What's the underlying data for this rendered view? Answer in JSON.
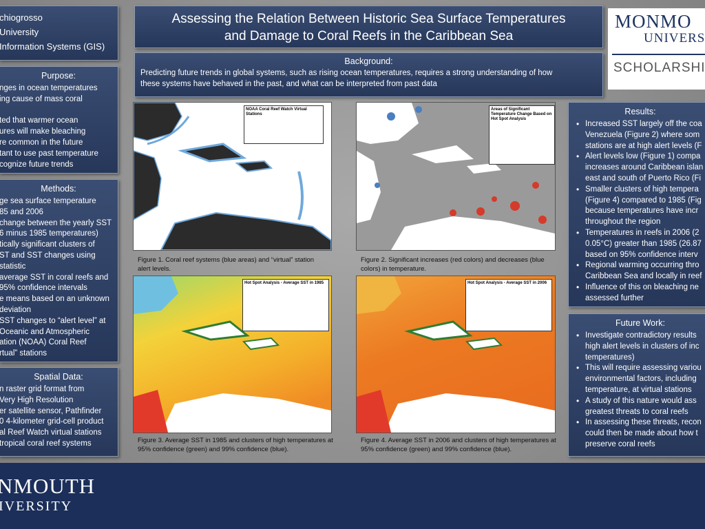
{
  "header": {
    "lines": [
      "chiogrosso",
      "University",
      "Information Systems (GIS)"
    ]
  },
  "purpose": {
    "title": "Purpose:",
    "lines": [
      "nges in ocean temperatures",
      "ing cause of mass coral",
      "",
      "ted that warmer ocean",
      "ures will make bleaching",
      "re common in the future",
      "tant to use past temperature",
      "cognize future trends"
    ]
  },
  "methods": {
    "title": "Methods:",
    "lines": [
      "ge sea surface temperature",
      "85 and 2006",
      "change between the yearly SST",
      "6 minus 1985 temperatures)",
      "tically significant clusters of",
      "ST and SST changes using",
      "statistic",
      "average SST in coral reefs and",
      "95% confidence intervals",
      "e means based on an unknown",
      "deviation",
      "SST changes to “alert level” at",
      "Oceanic and Atmospheric",
      "ation (NOAA) Coral Reef",
      "rtual” stations"
    ]
  },
  "spatial_data": {
    "title": "Spatial Data:",
    "lines": [
      "n raster grid format from",
      "Very High Resolution",
      "er satellite sensor, Pathfinder",
      "0 4-kilometer grid-cell product",
      "al Reef Watch virtual stations",
      "tropical coral reef systems"
    ]
  },
  "title": {
    "lines": [
      "Assessing the Relation Between Historic Sea Surface Temperatures",
      "and Damage to Coral Reefs in the Caribbean Sea"
    ]
  },
  "background": {
    "title": "Background:",
    "lines": [
      "Predicting future trends in global systems, such as rising ocean temperatures, requires a strong understanding of how",
      "these systems have behaved in the past, and what can be interpreted from past data"
    ]
  },
  "logo": {
    "name": [
      "MONMO",
      "UNIVERS"
    ],
    "tagline": "SCHOLARSHI"
  },
  "figures": [
    {
      "legend_title": "NOAA Coral Reef Watch Virtual Stations",
      "caption": [
        "Figure 1. Coral reef systems (blue areas) and “virtual” station",
        "alert levels."
      ]
    },
    {
      "legend_title": "Areas of Significant Temperature Change Based on Hot Spot Analysis",
      "caption": [
        "Figure 2. Significant increases (red colors) and decreases (blue",
        "colors) in temperature."
      ]
    },
    {
      "legend_title": "Hot Spot Analysis - Average SST in 1985",
      "caption": [
        "Figure 3. Average SST in 1985 and clusters of high temperatures at",
        "95% confidence (green) and 99% confidence (blue)."
      ]
    },
    {
      "legend_title": "Hot Spot Analysis - Average SST in 2006",
      "caption": [
        "Figure 4. Average SST in 2006 and clusters of high temperatures at",
        "95% confidence (green) and 99% confidence (blue)."
      ]
    }
  ],
  "results": {
    "title": "Results:",
    "items": [
      [
        "Increased SST largely off the coa",
        "Venezuela (Figure 2) where som",
        "stations are at high alert levels (F"
      ],
      [
        "Alert levels low (Figure 1) compa",
        "increases around Caribbean islan",
        "east and south of Puerto Rico (Fi"
      ],
      [
        "Smaller clusters of high tempera",
        "(Figure 4) compared to 1985 (Fig",
        "because temperatures have incr",
        "throughout the region"
      ],
      [
        "Temperatures in reefs in 2006 (2",
        "0.05°C) greater than 1985 (26.87",
        "based on 95% confidence interv"
      ],
      [
        "Regional warming occurring thro",
        "Caribbean Sea and locally in reef"
      ],
      [
        "Influence of this on bleaching ne",
        "assessed further"
      ]
    ]
  },
  "future_work": {
    "title": "Future Work:",
    "items": [
      [
        "Investigate contradictory results",
        "high alert levels in clusters of inc",
        "temperatures)"
      ],
      [
        "This will require assessing variou",
        "environmental factors, including",
        "temperature, at virtual stations"
      ],
      [
        "A study of this nature would ass",
        "greatest threats to coral reefs"
      ],
      [
        "In assessing these threats, recon",
        "could then be made about how t",
        "preserve coral reefs"
      ]
    ]
  },
  "footer": {
    "lines": [
      "NMOUTH",
      "IVERSITY"
    ]
  }
}
